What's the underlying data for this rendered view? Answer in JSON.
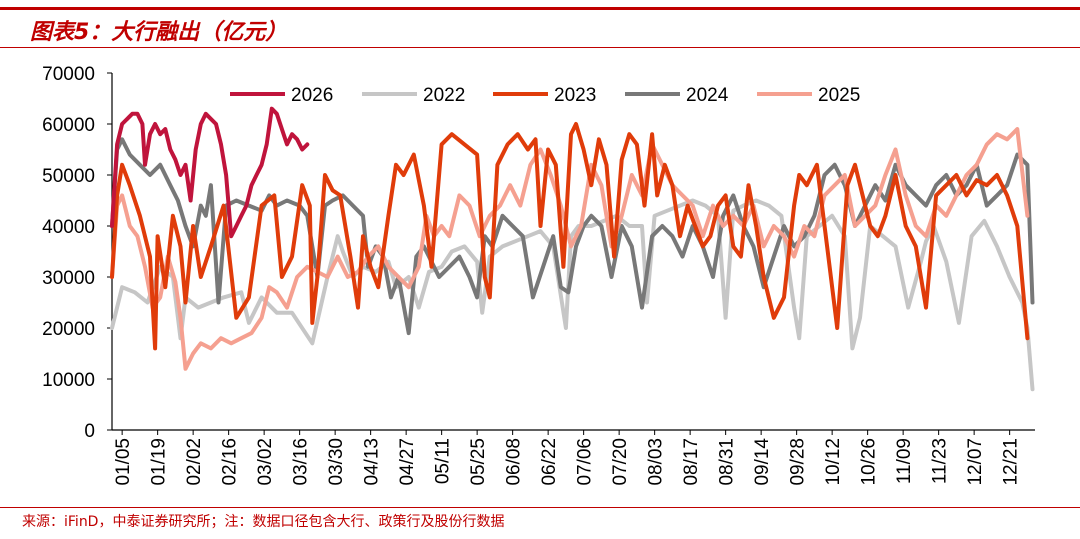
{
  "title": "图表5：大行融出（亿元）",
  "source": "来源：iFinD，中泰证券研究所；注：数据口径包含大行、政策行及股份行数据",
  "colors": {
    "2026": "#c0143c",
    "2022": "#c6c6c6",
    "2023": "#e03c0a",
    "2024": "#787878",
    "2025": "#f5a090",
    "accent": "#c00000"
  },
  "chart_data": {
    "type": "line",
    "title": "大行融出（亿元）",
    "xlabel": "",
    "ylabel": "",
    "ylim": [
      0,
      70000
    ],
    "yticks": [
      0,
      10000,
      20000,
      30000,
      40000,
      50000,
      60000,
      70000
    ],
    "xlim": [
      1,
      365
    ],
    "xticks": [
      {
        "label": "01/05",
        "day": 5
      },
      {
        "label": "01/19",
        "day": 19
      },
      {
        "label": "02/02",
        "day": 33
      },
      {
        "label": "02/16",
        "day": 47
      },
      {
        "label": "03/02",
        "day": 61
      },
      {
        "label": "03/16",
        "day": 75
      },
      {
        "label": "03/30",
        "day": 89
      },
      {
        "label": "04/13",
        "day": 103
      },
      {
        "label": "04/27",
        "day": 117
      },
      {
        "label": "05/11",
        "day": 131
      },
      {
        "label": "05/25",
        "day": 145
      },
      {
        "label": "06/08",
        "day": 159
      },
      {
        "label": "06/22",
        "day": 173
      },
      {
        "label": "07/06",
        "day": 187
      },
      {
        "label": "07/20",
        "day": 201
      },
      {
        "label": "08/03",
        "day": 215
      },
      {
        "label": "08/17",
        "day": 229
      },
      {
        "label": "08/31",
        "day": 243
      },
      {
        "label": "09/14",
        "day": 257
      },
      {
        "label": "09/28",
        "day": 271
      },
      {
        "label": "10/12",
        "day": 285
      },
      {
        "label": "10/26",
        "day": 299
      },
      {
        "label": "11/09",
        "day": 313
      },
      {
        "label": "11/23",
        "day": 327
      },
      {
        "label": "12/07",
        "day": 341
      },
      {
        "label": "12/21",
        "day": 355
      }
    ],
    "legend_position": "top",
    "grid": false,
    "series": [
      {
        "name": "2022",
        "x": [
          1,
          5,
          10,
          15,
          20,
          25,
          28,
          30,
          35,
          40,
          45,
          52,
          55,
          60,
          66,
          72,
          80,
          86,
          90,
          92,
          96,
          100,
          105,
          110,
          113,
          118,
          122,
          126,
          131,
          135,
          140,
          145,
          147,
          150,
          155,
          160,
          165,
          170,
          175,
          180,
          182,
          185,
          190,
          195,
          200,
          205,
          210,
          212,
          215,
          220,
          225,
          230,
          235,
          240,
          243,
          246,
          250,
          255,
          260,
          265,
          270,
          272,
          275,
          280,
          285,
          290,
          293,
          296,
          300,
          305,
          310,
          315,
          320,
          322,
          325,
          330,
          335,
          340,
          345,
          350,
          355,
          360,
          362,
          364
        ],
        "y": [
          20000,
          28000,
          27000,
          25000,
          32000,
          30000,
          18000,
          26000,
          24000,
          25000,
          26000,
          27000,
          21000,
          26000,
          23000,
          23000,
          17000,
          30000,
          38000,
          35000,
          30000,
          32000,
          31000,
          33000,
          28000,
          30000,
          24000,
          31000,
          32000,
          35000,
          36000,
          33000,
          23000,
          34000,
          36000,
          37000,
          38000,
          39000,
          36000,
          20000,
          38000,
          40000,
          40000,
          41000,
          42000,
          40000,
          40000,
          25000,
          42000,
          43000,
          44000,
          45000,
          44000,
          42000,
          22000,
          43000,
          44000,
          45000,
          44000,
          42000,
          24000,
          18000,
          38000,
          40000,
          42000,
          38000,
          16000,
          22000,
          40000,
          38000,
          36000,
          24000,
          33000,
          37000,
          40000,
          33000,
          21000,
          38000,
          41000,
          36000,
          30000,
          25000,
          20000,
          8000
        ]
      },
      {
        "name": "2023",
        "x": [
          1,
          3,
          5,
          8,
          12,
          16,
          18,
          19,
          22,
          25,
          28,
          30,
          33,
          36,
          40,
          45,
          50,
          55,
          60,
          65,
          68,
          72,
          76,
          79,
          80,
          82,
          85,
          88,
          91,
          95,
          98,
          100,
          103,
          106,
          110,
          113,
          116,
          120,
          124,
          127,
          131,
          135,
          140,
          145,
          148,
          150,
          153,
          157,
          161,
          165,
          168,
          170,
          173,
          176,
          179,
          182,
          184,
          187,
          190,
          193,
          196,
          199,
          202,
          205,
          208,
          211,
          214,
          216,
          219,
          222,
          225,
          228,
          231,
          234,
          237,
          240,
          243,
          246,
          249,
          252,
          255,
          258,
          262,
          266,
          270,
          272,
          275,
          279,
          283,
          287,
          291,
          294,
          297,
          300,
          303,
          306,
          310,
          314,
          318,
          322,
          326,
          330,
          334,
          338,
          342,
          346,
          350,
          354,
          358,
          362
        ],
        "y": [
          30000,
          46000,
          52000,
          48000,
          42000,
          34000,
          16000,
          38000,
          28000,
          42000,
          36000,
          25000,
          40000,
          30000,
          36000,
          44000,
          22000,
          26000,
          44000,
          46000,
          30000,
          34000,
          48000,
          44000,
          21000,
          30000,
          50000,
          47000,
          46000,
          34000,
          24000,
          38000,
          32000,
          28000,
          42000,
          52000,
          50000,
          54000,
          44000,
          32000,
          56000,
          58000,
          56000,
          54000,
          30000,
          26000,
          52000,
          56000,
          58000,
          55000,
          57000,
          40000,
          55000,
          52000,
          32000,
          58000,
          60000,
          55000,
          48000,
          57000,
          52000,
          34000,
          53000,
          58000,
          56000,
          44000,
          58000,
          46000,
          52000,
          48000,
          38000,
          44000,
          40000,
          36000,
          38000,
          44000,
          46000,
          36000,
          34000,
          48000,
          40000,
          30000,
          22000,
          26000,
          44000,
          50000,
          48000,
          52000,
          36000,
          20000,
          48000,
          52000,
          46000,
          40000,
          38000,
          42000,
          50000,
          40000,
          36000,
          24000,
          46000,
          48000,
          50000,
          46000,
          49000,
          48000,
          50000,
          46000,
          40000,
          18000
        ]
      },
      {
        "name": "2024",
        "x": [
          1,
          3,
          5,
          8,
          12,
          16,
          20,
          24,
          27,
          30,
          33,
          36,
          38,
          40,
          43,
          46,
          50,
          55,
          60,
          63,
          66,
          70,
          75,
          78,
          80,
          82,
          85,
          88,
          92,
          96,
          100,
          102,
          105,
          108,
          111,
          114,
          118,
          121,
          124,
          127,
          130,
          134,
          138,
          142,
          145,
          148,
          151,
          155,
          159,
          163,
          167,
          171,
          175,
          178,
          181,
          184,
          187,
          190,
          194,
          198,
          202,
          206,
          210,
          214,
          218,
          222,
          226,
          230,
          234,
          238,
          242,
          246,
          250,
          254,
          258,
          262,
          266,
          270,
          274,
          278,
          282,
          286,
          290,
          294,
          298,
          302,
          306,
          310,
          314,
          318,
          322,
          326,
          330,
          334,
          338,
          342,
          346,
          350,
          354,
          358,
          362,
          364
        ],
        "y": [
          40000,
          55000,
          57000,
          54000,
          52000,
          50000,
          52000,
          48000,
          45000,
          40000,
          36000,
          44000,
          42000,
          48000,
          25000,
          44000,
          45000,
          44000,
          43000,
          46000,
          44000,
          45000,
          44000,
          42000,
          36000,
          30000,
          44000,
          45000,
          46000,
          44000,
          42000,
          32000,
          36000,
          34000,
          26000,
          30000,
          19000,
          34000,
          36000,
          33000,
          30000,
          32000,
          34000,
          30000,
          26000,
          38000,
          36000,
          42000,
          40000,
          38000,
          26000,
          32000,
          38000,
          28000,
          27000,
          36000,
          40000,
          42000,
          40000,
          30000,
          40000,
          36000,
          24000,
          38000,
          40000,
          38000,
          34000,
          40000,
          36000,
          30000,
          42000,
          46000,
          40000,
          36000,
          28000,
          34000,
          40000,
          36000,
          38000,
          42000,
          50000,
          52000,
          48000,
          40000,
          44000,
          48000,
          45000,
          52000,
          48000,
          46000,
          44000,
          48000,
          50000,
          46000,
          48000,
          52000,
          44000,
          46000,
          48000,
          54000,
          52000,
          25000
        ]
      },
      {
        "name": "2025",
        "x": [
          1,
          3,
          5,
          8,
          11,
          14,
          17,
          20,
          23,
          26,
          28,
          30,
          33,
          36,
          40,
          44,
          48,
          52,
          56,
          60,
          63,
          66,
          70,
          74,
          78,
          82,
          86,
          90,
          94,
          98,
          102,
          106,
          110,
          114,
          118,
          122,
          125,
          128,
          131,
          134,
          138,
          142,
          146,
          150,
          154,
          158,
          162,
          166,
          170,
          174,
          178,
          182,
          186,
          190,
          194,
          198,
          202,
          206,
          210,
          214,
          218,
          222,
          226,
          230,
          234,
          238,
          242,
          246,
          250,
          254,
          258,
          262,
          266,
          270,
          274,
          278,
          282,
          286,
          290,
          294,
          298,
          302,
          306,
          310,
          314,
          318,
          322,
          326,
          330,
          334,
          338,
          342,
          346,
          350,
          354,
          358,
          362
        ],
        "y": [
          30000,
          44000,
          46000,
          40000,
          38000,
          32000,
          24000,
          26000,
          34000,
          29000,
          22000,
          12000,
          15000,
          17000,
          16000,
          18000,
          17000,
          18000,
          19000,
          22000,
          28000,
          27000,
          24000,
          30000,
          32000,
          31000,
          30000,
          34000,
          30000,
          31000,
          34000,
          36000,
          32000,
          30000,
          28000,
          32000,
          42000,
          38000,
          40000,
          38000,
          46000,
          44000,
          38000,
          42000,
          44000,
          48000,
          44000,
          52000,
          55000,
          50000,
          44000,
          36000,
          40000,
          52000,
          48000,
          36000,
          42000,
          50000,
          46000,
          56000,
          52000,
          48000,
          46000,
          44000,
          38000,
          44000,
          40000,
          42000,
          40000,
          44000,
          36000,
          40000,
          38000,
          34000,
          40000,
          38000,
          46000,
          48000,
          50000,
          40000,
          42000,
          44000,
          50000,
          55000,
          46000,
          40000,
          38000,
          44000,
          42000,
          46000,
          50000,
          52000,
          56000,
          58000,
          57000,
          59000,
          42000
        ]
      },
      {
        "name": "2026",
        "x": [
          1,
          3,
          5,
          7,
          9,
          11,
          13,
          14,
          16,
          18,
          20,
          22,
          24,
          26,
          28,
          30,
          32,
          34,
          36,
          38,
          40,
          42,
          44,
          46,
          48,
          50,
          52,
          54,
          56,
          58,
          60,
          62,
          64,
          66,
          68,
          70,
          72,
          74,
          76,
          78
        ],
        "y": [
          40000,
          56000,
          60000,
          61000,
          62000,
          62000,
          60000,
          52000,
          58000,
          60000,
          58000,
          59000,
          55000,
          53000,
          50000,
          52000,
          45000,
          55000,
          60000,
          62000,
          61000,
          60000,
          56000,
          50000,
          38000,
          40000,
          42000,
          44000,
          48000,
          50000,
          52000,
          56000,
          63000,
          62000,
          59000,
          56000,
          58000,
          57000,
          55000,
          56000
        ]
      }
    ]
  }
}
